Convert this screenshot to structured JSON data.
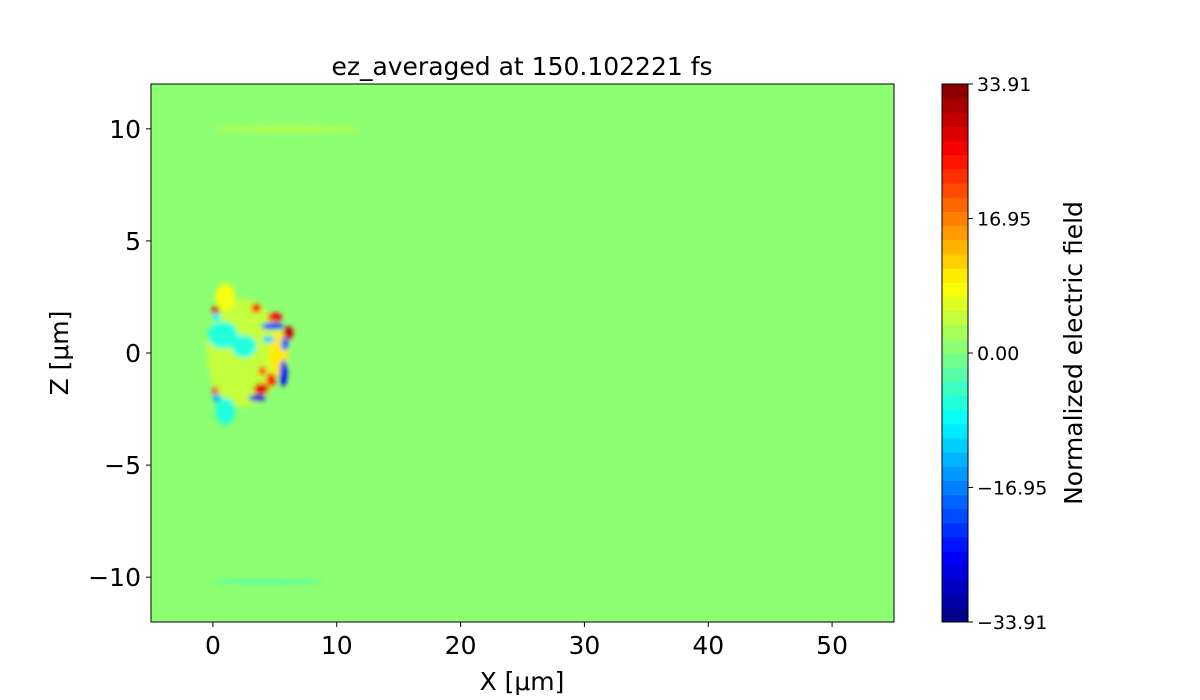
{
  "chart_data": {
    "type": "heatmap",
    "title": "ez_averaged at 150.102221 fs",
    "xlabel": "X [μm]",
    "ylabel": "Z [μm]",
    "xlim": [
      -5,
      55
    ],
    "ylim": [
      -12,
      12
    ],
    "xticks": [
      0,
      10,
      20,
      30,
      40,
      50
    ],
    "yticks": [
      -10,
      -5,
      0,
      5,
      10
    ],
    "xtick_labels": [
      "0",
      "10",
      "20",
      "30",
      "40",
      "50"
    ],
    "ytick_labels": [
      "−10",
      "−5",
      "0",
      "5",
      "10"
    ],
    "colormap": "jet",
    "colorbar": {
      "label": "Normalized electric field",
      "range": [
        -33.91,
        33.91
      ],
      "levels": 38,
      "ticks": [
        33.91,
        16.95,
        0.0,
        -16.95,
        -33.91
      ],
      "tick_labels": [
        "33.91",
        "16.95",
        "0.00",
        "−16.95",
        "−33.91"
      ]
    },
    "background_value": 0,
    "features": [
      {
        "x": 2.5,
        "z": 0,
        "rx": 3.0,
        "rz": 2.4,
        "v": 4
      },
      {
        "x": 1.0,
        "z": 2.5,
        "rx": 0.8,
        "rz": 0.6,
        "v": 8
      },
      {
        "x": 0.8,
        "z": 0.8,
        "rx": 1.2,
        "rz": 0.6,
        "v": -6
      },
      {
        "x": 1.0,
        "z": -2.6,
        "rx": 0.8,
        "rz": 0.6,
        "v": -7
      },
      {
        "x": 5.3,
        "z": 0.0,
        "rx": 0.8,
        "rz": 1.0,
        "v": 10
      },
      {
        "x": 2.5,
        "z": 0.3,
        "rx": 1.0,
        "rz": 0.5,
        "v": -6
      },
      {
        "x": 0.2,
        "z": 1.9,
        "rx": 0.3,
        "rz": 0.2,
        "v": 28
      },
      {
        "x": 3.5,
        "z": 2.0,
        "rx": 0.4,
        "rz": 0.2,
        "v": 25
      },
      {
        "x": 5.0,
        "z": 1.6,
        "rx": 0.6,
        "rz": 0.2,
        "v": 26
      },
      {
        "x": 6.1,
        "z": 0.9,
        "rx": 0.4,
        "rz": 0.3,
        "v": 30
      },
      {
        "x": 3.9,
        "z": -1.6,
        "rx": 0.6,
        "rz": 0.25,
        "v": 28
      },
      {
        "x": 4.7,
        "z": -1.2,
        "rx": 0.4,
        "rz": 0.3,
        "v": 24
      },
      {
        "x": 4.0,
        "z": -0.8,
        "rx": 0.3,
        "rz": 0.2,
        "v": 22
      },
      {
        "x": 0.2,
        "z": -1.7,
        "rx": 0.25,
        "rz": 0.2,
        "v": 22
      },
      {
        "x": 4.8,
        "z": 1.2,
        "rx": 0.9,
        "rz": 0.15,
        "v": -22
      },
      {
        "x": 5.8,
        "z": 0.4,
        "rx": 0.3,
        "rz": 0.3,
        "v": -18
      },
      {
        "x": 3.6,
        "z": -2.0,
        "rx": 0.7,
        "rz": 0.15,
        "v": -28
      },
      {
        "x": 5.7,
        "z": -0.9,
        "rx": 0.3,
        "rz": 0.6,
        "v": -25
      },
      {
        "x": 0.3,
        "z": 1.6,
        "rx": 0.3,
        "rz": 0.2,
        "v": -10
      },
      {
        "x": 0.3,
        "z": -2.0,
        "rx": 0.3,
        "rz": 0.2,
        "v": -14
      },
      {
        "x": 4.5,
        "z": 0.6,
        "rx": 0.5,
        "rz": 0.15,
        "v": -12
      },
      {
        "x": 6.0,
        "z": 10.0,
        "rx": 6.0,
        "rz": 0.1,
        "v": 4
      },
      {
        "x": 4.5,
        "z": -10.2,
        "rx": 4.5,
        "rz": 0.1,
        "v": -3
      }
    ]
  }
}
